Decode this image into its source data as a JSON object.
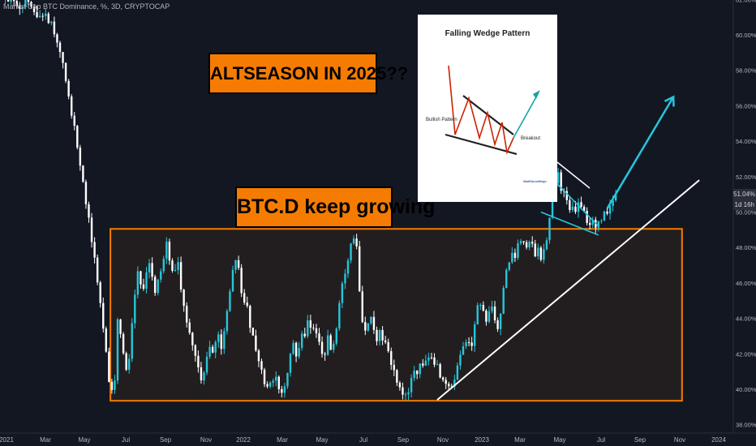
{
  "symbol": "Market Cap BTC Dominance, %, 3D, CRYPTOCAP",
  "annotations": {
    "altseason": "ALTSEASON IN 2025??",
    "btcd": "BTC.D keep growing"
  },
  "inset": {
    "title": "Falling Wedge Pattern",
    "bullish_label": "Bullish Pattern",
    "breakout_label": "Breakout",
    "logo": "WallStreetMojo"
  },
  "price_badge": {
    "price": "51.04%",
    "time": "1d 16h"
  },
  "colors": {
    "background": "#131722",
    "up": "#26c6da",
    "down": "#ffffff",
    "box": "#f57c00",
    "trendline": "#ffffff",
    "wedge": "#26c6da"
  },
  "chart_data": {
    "type": "candlestick",
    "title": "Market Cap BTC Dominance, %, 3D, CRYPTOCAP",
    "ylim": [
      38,
      62.5
    ],
    "y_ticks": [
      "40.00%",
      "42.00%",
      "44.00%",
      "46.00%",
      "48.00%",
      "50.00%",
      "52.00%",
      "54.00%",
      "56.00%",
      "58.00%",
      "60.00%",
      "62.00%"
    ],
    "x_ticks": [
      "2021",
      "Mar",
      "May",
      "Jul",
      "Sep",
      "Nov",
      "2022",
      "Mar",
      "May",
      "Jul",
      "Sep",
      "Nov",
      "2023",
      "Mar",
      "May",
      "Jul",
      "Sep",
      "Nov",
      "2024"
    ],
    "grid": false,
    "closes": [
      [
        0,
        62.3
      ],
      [
        3,
        62.0
      ],
      [
        6,
        61.5
      ],
      [
        9,
        62.1
      ],
      [
        12,
        61.2
      ],
      [
        15,
        61.0
      ],
      [
        17,
        60.5
      ],
      [
        19,
        59.8
      ],
      [
        21,
        58.2
      ],
      [
        23,
        56.5
      ],
      [
        25,
        54.8
      ],
      [
        27,
        52.8
      ],
      [
        29,
        50.5
      ],
      [
        31,
        48.5
      ],
      [
        33,
        46.0
      ],
      [
        35,
        43.5
      ],
      [
        37,
        40.5
      ],
      [
        38,
        40.2
      ],
      [
        39,
        40.6
      ],
      [
        40,
        44.0
      ],
      [
        41,
        43.2
      ],
      [
        42,
        42.0
      ],
      [
        43,
        41.2
      ],
      [
        44,
        41.6
      ],
      [
        45,
        43.5
      ],
      [
        46,
        45.2
      ],
      [
        47,
        46.5
      ],
      [
        48,
        46.0
      ],
      [
        49,
        45.5
      ],
      [
        50,
        46.5
      ],
      [
        51,
        47.0
      ],
      [
        52,
        46.2
      ],
      [
        53,
        45.5
      ],
      [
        54,
        46.0
      ],
      [
        55,
        46.5
      ],
      [
        56,
        47.5
      ],
      [
        57,
        48.2
      ],
      [
        58,
        47.5
      ],
      [
        59,
        46.5
      ],
      [
        60,
        46.8
      ],
      [
        61,
        47.0
      ],
      [
        62,
        45.5
      ],
      [
        63,
        44.5
      ],
      [
        64,
        43.8
      ],
      [
        65,
        43.2
      ],
      [
        66,
        42.5
      ],
      [
        67,
        41.8
      ],
      [
        68,
        41.2
      ],
      [
        69,
        40.5
      ],
      [
        70,
        40.8
      ],
      [
        71,
        41.8
      ],
      [
        72,
        42.5
      ],
      [
        73,
        42.0
      ],
      [
        74,
        42.8
      ],
      [
        75,
        43.2
      ],
      [
        76,
        42.5
      ],
      [
        77,
        43.5
      ],
      [
        78,
        44.5
      ],
      [
        79,
        45.5
      ],
      [
        80,
        46.5
      ],
      [
        81,
        47.3
      ],
      [
        82,
        46.8
      ],
      [
        83,
        45.5
      ],
      [
        84,
        44.8
      ],
      [
        85,
        44.5
      ],
      [
        86,
        43.5
      ],
      [
        87,
        43.0
      ],
      [
        88,
        42.2
      ],
      [
        89,
        41.8
      ],
      [
        90,
        41.0
      ],
      [
        91,
        40.5
      ],
      [
        92,
        40.2
      ],
      [
        93,
        40.6
      ],
      [
        94,
        40.3
      ],
      [
        95,
        40.8
      ],
      [
        96,
        40.2
      ],
      [
        97,
        39.8
      ],
      [
        98,
        40.2
      ],
      [
        99,
        41.0
      ],
      [
        100,
        41.8
      ],
      [
        101,
        42.5
      ],
      [
        102,
        42.0
      ],
      [
        103,
        42.3
      ],
      [
        104,
        43.0
      ],
      [
        105,
        43.2
      ],
      [
        106,
        43.8
      ],
      [
        107,
        43.5
      ],
      [
        108,
        43.6
      ],
      [
        109,
        43.2
      ],
      [
        110,
        42.5
      ],
      [
        111,
        42.2
      ],
      [
        112,
        42.0
      ],
      [
        113,
        42.8
      ],
      [
        114,
        42.4
      ],
      [
        115,
        42.6
      ],
      [
        116,
        43.5
      ],
      [
        117,
        44.8
      ],
      [
        118,
        45.8
      ],
      [
        119,
        46.5
      ],
      [
        120,
        47.2
      ],
      [
        121,
        48.0
      ],
      [
        122,
        48.7
      ],
      [
        123,
        48.0
      ],
      [
        124,
        45.5
      ],
      [
        125,
        44.0
      ],
      [
        126,
        43.5
      ],
      [
        127,
        43.8
      ],
      [
        128,
        44.2
      ],
      [
        129,
        43.5
      ],
      [
        130,
        42.8
      ],
      [
        131,
        43.2
      ],
      [
        132,
        42.8
      ],
      [
        133,
        42.5
      ],
      [
        134,
        42.0
      ],
      [
        135,
        41.5
      ],
      [
        136,
        41.0
      ],
      [
        137,
        40.5
      ],
      [
        138,
        40.2
      ],
      [
        139,
        39.8
      ],
      [
        140,
        39.6
      ],
      [
        141,
        40.0
      ],
      [
        142,
        40.8
      ],
      [
        143,
        41.2
      ],
      [
        144,
        41.0
      ],
      [
        145,
        41.5
      ],
      [
        146,
        41.2
      ],
      [
        147,
        41.6
      ],
      [
        148,
        41.8
      ],
      [
        149,
        42.0
      ],
      [
        150,
        41.5
      ],
      [
        151,
        41.2
      ],
      [
        152,
        40.6
      ],
      [
        153,
        40.4
      ],
      [
        154,
        40.2
      ],
      [
        155,
        40.0
      ],
      [
        156,
        40.3
      ],
      [
        157,
        40.7
      ],
      [
        158,
        41.2
      ],
      [
        159,
        41.8
      ],
      [
        160,
        42.2
      ],
      [
        161,
        42.5
      ],
      [
        162,
        42.8
      ],
      [
        163,
        42.5
      ],
      [
        164,
        43.5
      ],
      [
        165,
        44.5
      ],
      [
        166,
        45.0
      ],
      [
        167,
        44.5
      ],
      [
        168,
        44.0
      ],
      [
        169,
        44.3
      ],
      [
        170,
        44.8
      ],
      [
        171,
        44.0
      ],
      [
        172,
        43.5
      ],
      [
        173,
        44.5
      ],
      [
        174,
        45.5
      ],
      [
        175,
        46.5
      ],
      [
        176,
        47.2
      ],
      [
        177,
        47.8
      ],
      [
        178,
        47.5
      ],
      [
        179,
        48.0
      ],
      [
        180,
        48.5
      ],
      [
        181,
        48.3
      ],
      [
        182,
        47.8
      ],
      [
        183,
        48.4
      ],
      [
        184,
        48.0
      ],
      [
        185,
        47.6
      ],
      [
        186,
        47.9
      ],
      [
        187,
        47.4
      ],
      [
        188,
        48.0
      ],
      [
        189,
        48.6
      ],
      [
        190,
        49.5
      ],
      [
        191,
        50.8
      ],
      [
        192,
        51.8
      ],
      [
        193,
        52.0
      ],
      [
        194,
        51.2
      ],
      [
        195,
        51.0
      ],
      [
        196,
        50.5
      ],
      [
        197,
        50.2
      ],
      [
        198,
        50.4
      ],
      [
        199,
        50.0
      ],
      [
        200,
        50.6
      ],
      [
        201,
        50.5
      ],
      [
        202,
        50.2
      ],
      [
        203,
        49.6
      ],
      [
        204,
        49.3
      ],
      [
        205,
        49.5
      ],
      [
        206,
        49.2
      ],
      [
        207,
        49.6
      ],
      [
        208,
        49.4
      ],
      [
        209,
        50.0
      ],
      [
        210,
        49.7
      ],
      [
        211,
        50.1
      ],
      [
        212,
        50.6
      ],
      [
        213,
        51.0
      ]
    ],
    "box": {
      "x_start": 37.5,
      "x_end": 236,
      "y_top": 49.05,
      "y_bottom": 39.35
    },
    "trendline": {
      "start": [
        151,
        39.4
      ],
      "end": [
        242,
        51.8
      ]
    },
    "wedge": {
      "upper": {
        "start": [
          189,
          52.2
        ],
        "end": [
          207,
          49.2
        ]
      },
      "lower": {
        "start": [
          187,
          50.0
        ],
        "end": [
          207,
          48.7
        ]
      }
    },
    "projection": {
      "start": [
        210,
        50.2
      ],
      "end": [
        233,
        56.5
      ]
    }
  }
}
